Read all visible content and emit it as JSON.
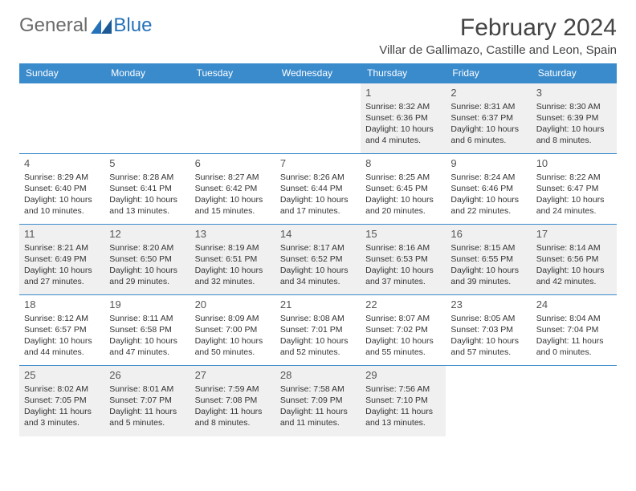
{
  "brand": {
    "general": "General",
    "blue": "Blue"
  },
  "title": "February 2024",
  "location": "Villar de Gallimazo, Castille and Leon, Spain",
  "headers": [
    "Sunday",
    "Monday",
    "Tuesday",
    "Wednesday",
    "Thursday",
    "Friday",
    "Saturday"
  ],
  "colors": {
    "header_bg": "#3a8bcc",
    "header_text": "#ffffff",
    "logo_gray": "#6a6a6a",
    "logo_blue": "#2572b9",
    "cell_alt_bg": "#f0f0f0",
    "text": "#333333"
  },
  "weeks": [
    [
      null,
      null,
      null,
      null,
      {
        "n": "1",
        "sunrise": "8:32 AM",
        "sunset": "6:36 PM",
        "daylight": "10 hours and 4 minutes."
      },
      {
        "n": "2",
        "sunrise": "8:31 AM",
        "sunset": "6:37 PM",
        "daylight": "10 hours and 6 minutes."
      },
      {
        "n": "3",
        "sunrise": "8:30 AM",
        "sunset": "6:39 PM",
        "daylight": "10 hours and 8 minutes."
      }
    ],
    [
      {
        "n": "4",
        "sunrise": "8:29 AM",
        "sunset": "6:40 PM",
        "daylight": "10 hours and 10 minutes."
      },
      {
        "n": "5",
        "sunrise": "8:28 AM",
        "sunset": "6:41 PM",
        "daylight": "10 hours and 13 minutes."
      },
      {
        "n": "6",
        "sunrise": "8:27 AM",
        "sunset": "6:42 PM",
        "daylight": "10 hours and 15 minutes."
      },
      {
        "n": "7",
        "sunrise": "8:26 AM",
        "sunset": "6:44 PM",
        "daylight": "10 hours and 17 minutes."
      },
      {
        "n": "8",
        "sunrise": "8:25 AM",
        "sunset": "6:45 PM",
        "daylight": "10 hours and 20 minutes."
      },
      {
        "n": "9",
        "sunrise": "8:24 AM",
        "sunset": "6:46 PM",
        "daylight": "10 hours and 22 minutes."
      },
      {
        "n": "10",
        "sunrise": "8:22 AM",
        "sunset": "6:47 PM",
        "daylight": "10 hours and 24 minutes."
      }
    ],
    [
      {
        "n": "11",
        "sunrise": "8:21 AM",
        "sunset": "6:49 PM",
        "daylight": "10 hours and 27 minutes."
      },
      {
        "n": "12",
        "sunrise": "8:20 AM",
        "sunset": "6:50 PM",
        "daylight": "10 hours and 29 minutes."
      },
      {
        "n": "13",
        "sunrise": "8:19 AM",
        "sunset": "6:51 PM",
        "daylight": "10 hours and 32 minutes."
      },
      {
        "n": "14",
        "sunrise": "8:17 AM",
        "sunset": "6:52 PM",
        "daylight": "10 hours and 34 minutes."
      },
      {
        "n": "15",
        "sunrise": "8:16 AM",
        "sunset": "6:53 PM",
        "daylight": "10 hours and 37 minutes."
      },
      {
        "n": "16",
        "sunrise": "8:15 AM",
        "sunset": "6:55 PM",
        "daylight": "10 hours and 39 minutes."
      },
      {
        "n": "17",
        "sunrise": "8:14 AM",
        "sunset": "6:56 PM",
        "daylight": "10 hours and 42 minutes."
      }
    ],
    [
      {
        "n": "18",
        "sunrise": "8:12 AM",
        "sunset": "6:57 PM",
        "daylight": "10 hours and 44 minutes."
      },
      {
        "n": "19",
        "sunrise": "8:11 AM",
        "sunset": "6:58 PM",
        "daylight": "10 hours and 47 minutes."
      },
      {
        "n": "20",
        "sunrise": "8:09 AM",
        "sunset": "7:00 PM",
        "daylight": "10 hours and 50 minutes."
      },
      {
        "n": "21",
        "sunrise": "8:08 AM",
        "sunset": "7:01 PM",
        "daylight": "10 hours and 52 minutes."
      },
      {
        "n": "22",
        "sunrise": "8:07 AM",
        "sunset": "7:02 PM",
        "daylight": "10 hours and 55 minutes."
      },
      {
        "n": "23",
        "sunrise": "8:05 AM",
        "sunset": "7:03 PM",
        "daylight": "10 hours and 57 minutes."
      },
      {
        "n": "24",
        "sunrise": "8:04 AM",
        "sunset": "7:04 PM",
        "daylight": "11 hours and 0 minutes."
      }
    ],
    [
      {
        "n": "25",
        "sunrise": "8:02 AM",
        "sunset": "7:05 PM",
        "daylight": "11 hours and 3 minutes."
      },
      {
        "n": "26",
        "sunrise": "8:01 AM",
        "sunset": "7:07 PM",
        "daylight": "11 hours and 5 minutes."
      },
      {
        "n": "27",
        "sunrise": "7:59 AM",
        "sunset": "7:08 PM",
        "daylight": "11 hours and 8 minutes."
      },
      {
        "n": "28",
        "sunrise": "7:58 AM",
        "sunset": "7:09 PM",
        "daylight": "11 hours and 11 minutes."
      },
      {
        "n": "29",
        "sunrise": "7:56 AM",
        "sunset": "7:10 PM",
        "daylight": "11 hours and 13 minutes."
      },
      null,
      null
    ]
  ]
}
